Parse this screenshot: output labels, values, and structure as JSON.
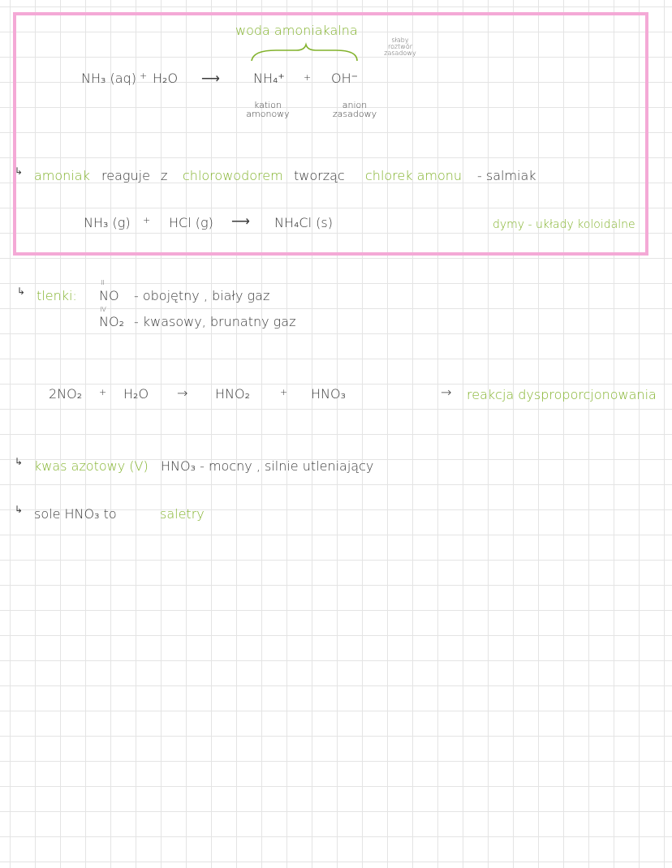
{
  "box": {
    "heading": "woda amoniakalna",
    "heading_note": "słaby roztwór zasadowy",
    "equation": [
      "NH₃ (aq)",
      "+",
      "H₂O",
      "⟶",
      "NH₄⁺",
      "+",
      "OH⁻"
    ],
    "labels": [
      "kation amonowy",
      "anion zasadowy"
    ],
    "sentence": [
      "amoniak",
      "reaguje",
      "z",
      "chlorowodorem",
      "tworząc",
      "chlorek amonu",
      "- salmiak"
    ],
    "equation2": [
      "NH₃ (g)",
      "+",
      "HCl (g)",
      "⟶",
      "NH₄Cl (s)"
    ],
    "note": "dymy - układy koloidalne"
  },
  "oxides": {
    "label": "tlenki:",
    "rows": [
      {
        "valence": "II",
        "formula": "NO",
        "description": "- obojętny , biały gaz"
      },
      {
        "valence": "IV",
        "formula": "NO₂",
        "description": "- kwasowy, brunatny gaz"
      }
    ]
  },
  "reaction": {
    "equation": [
      "2NO₂",
      "+",
      "H₂O",
      "→",
      "HNO₂",
      "+",
      "HNO₃"
    ],
    "arrow": "→",
    "note": "reakcja dysproporcjonowania"
  },
  "lines": [
    {
      "green": "kwas azotowy (V)",
      "text": "HNO₃ - mocny , silnie utleniający"
    },
    {
      "text": "sole HNO₃ to",
      "green": "saletry"
    }
  ]
}
